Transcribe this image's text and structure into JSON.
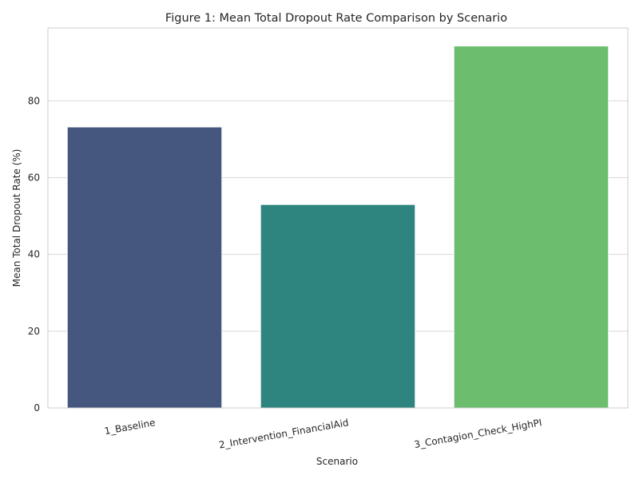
{
  "chart_data": {
    "type": "bar",
    "title": "Figure 1: Mean Total Dropout Rate Comparison by Scenario",
    "xlabel": "Scenario",
    "ylabel": "Mean Total Dropout Rate (%)",
    "categories": [
      "1_Baseline",
      "2_Intervention_FinancialAid",
      "3_Contagion_Check_HighPI"
    ],
    "values": [
      73.2,
      53.0,
      94.3
    ],
    "colors": [
      "#45577f",
      "#2e847e",
      "#6cbd6d"
    ],
    "ylim": [
      0,
      99
    ],
    "yticks": [
      0,
      20,
      40,
      60,
      80
    ],
    "grid": true,
    "style": "seaborn-whitegrid"
  }
}
